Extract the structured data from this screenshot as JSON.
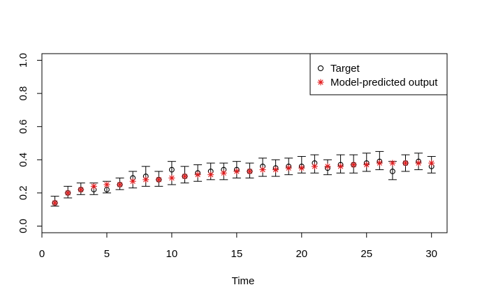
{
  "chart_data": {
    "type": "scatter",
    "title": "",
    "xlabel": "Time",
    "ylabel": "",
    "xlim": [
      0,
      31.2
    ],
    "ylim": [
      -0.04,
      1.04
    ],
    "x_ticks": [
      0,
      5,
      10,
      15,
      20,
      25,
      30
    ],
    "x_tick_labels": [
      "0",
      "5",
      "10",
      "15",
      "20",
      "25",
      "30"
    ],
    "y_ticks": [
      0.0,
      0.2,
      0.4,
      0.6,
      0.8,
      1.0
    ],
    "y_tick_labels": [
      "0.0",
      "0.2",
      "0.4",
      "0.6",
      "0.8",
      "1.0"
    ],
    "grid": false,
    "legend_position": "top-right",
    "x": [
      1,
      2,
      3,
      4,
      5,
      6,
      7,
      8,
      9,
      10,
      11,
      12,
      13,
      14,
      15,
      16,
      17,
      18,
      19,
      20,
      21,
      22,
      23,
      24,
      25,
      26,
      27,
      28,
      29,
      30
    ],
    "series": [
      {
        "name": "Target",
        "marker": "open-circle",
        "color": "#000000",
        "values": [
          0.14,
          0.2,
          0.22,
          0.22,
          0.22,
          0.25,
          0.29,
          0.3,
          0.28,
          0.34,
          0.3,
          0.32,
          0.33,
          0.34,
          0.34,
          0.33,
          0.36,
          0.35,
          0.36,
          0.36,
          0.38,
          0.35,
          0.37,
          0.37,
          0.38,
          0.39,
          0.33,
          0.38,
          0.39,
          0.36
        ]
      },
      {
        "name": "Model-predicted output",
        "marker": "asterisk",
        "color": "#e31a1c",
        "values": [
          0.14,
          0.2,
          0.22,
          0.24,
          0.25,
          0.25,
          0.27,
          0.28,
          0.28,
          0.29,
          0.3,
          0.31,
          0.31,
          0.32,
          0.33,
          0.33,
          0.34,
          0.34,
          0.35,
          0.35,
          0.36,
          0.36,
          0.36,
          0.37,
          0.37,
          0.38,
          0.38,
          0.38,
          0.38,
          0.38
        ]
      }
    ],
    "error_bars": {
      "lower": [
        0.12,
        0.17,
        0.19,
        0.19,
        0.2,
        0.22,
        0.23,
        0.24,
        0.24,
        0.25,
        0.26,
        0.27,
        0.28,
        0.28,
        0.29,
        0.29,
        0.3,
        0.3,
        0.31,
        0.32,
        0.32,
        0.31,
        0.32,
        0.32,
        0.33,
        0.34,
        0.28,
        0.33,
        0.34,
        0.32
      ],
      "upper": [
        0.18,
        0.24,
        0.26,
        0.26,
        0.27,
        0.29,
        0.33,
        0.36,
        0.33,
        0.39,
        0.36,
        0.37,
        0.38,
        0.38,
        0.39,
        0.38,
        0.41,
        0.4,
        0.41,
        0.42,
        0.43,
        0.4,
        0.43,
        0.43,
        0.44,
        0.45,
        0.39,
        0.43,
        0.44,
        0.42
      ]
    }
  }
}
